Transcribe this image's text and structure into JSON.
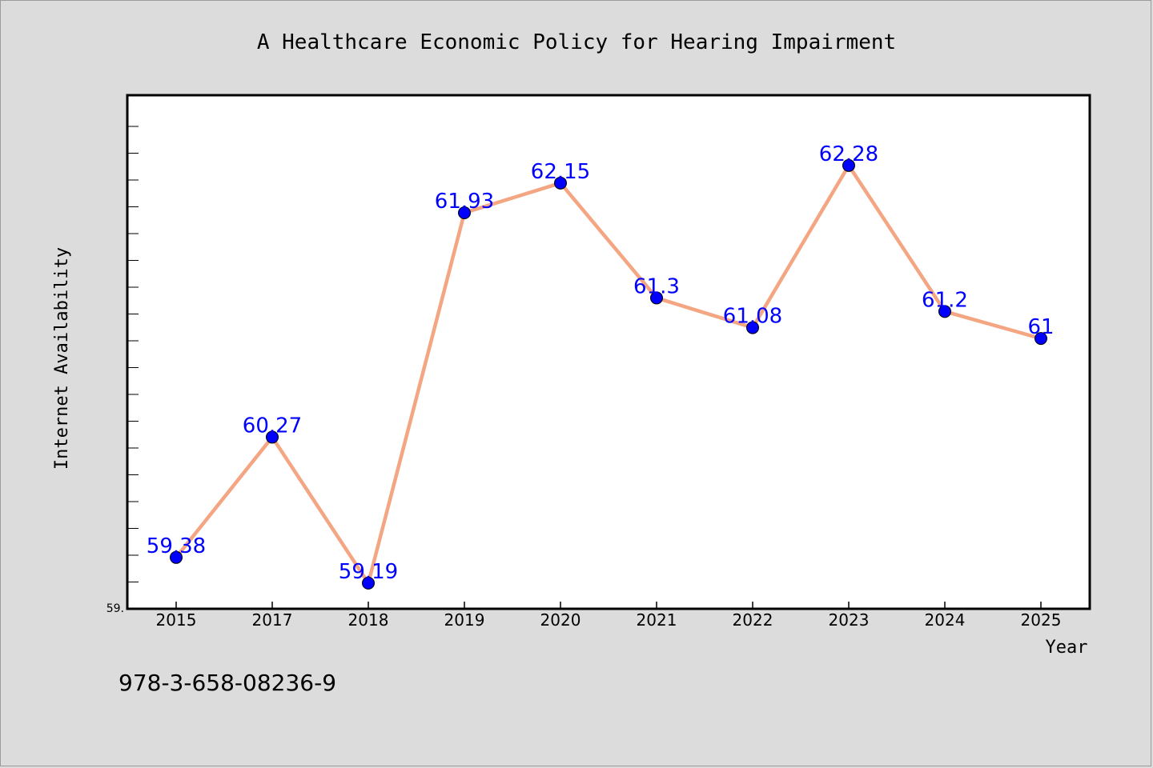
{
  "footer": {
    "isbn": "978-3-658-08236-9"
  },
  "chart_data": {
    "type": "line",
    "title": "A Healthcare Economic Policy for Hearing Impairment",
    "xlabel": "Year",
    "ylabel": "Internet Availability",
    "categories": [
      "2015",
      "2017",
      "2018",
      "2019",
      "2020",
      "2021",
      "2022",
      "2023",
      "2024",
      "2025"
    ],
    "values": [
      59.38,
      60.27,
      59.19,
      61.93,
      62.15,
      61.3,
      61.08,
      62.28,
      61.2,
      61.0
    ],
    "data_labels": [
      "59.38",
      "60.27",
      "59.19",
      "61.93",
      "62.15",
      "61.3",
      "61.08",
      "62.28",
      "61.2",
      "61"
    ],
    "y_tick_labels": [
      "59."
    ],
    "ylim": [
      59.0,
      62.8
    ],
    "grid": false,
    "colors": {
      "line": "#f4a582",
      "marker": "#0000ff",
      "label": "#0000ff",
      "background": "#dcdcdc",
      "plot_background": "#ffffff"
    }
  }
}
